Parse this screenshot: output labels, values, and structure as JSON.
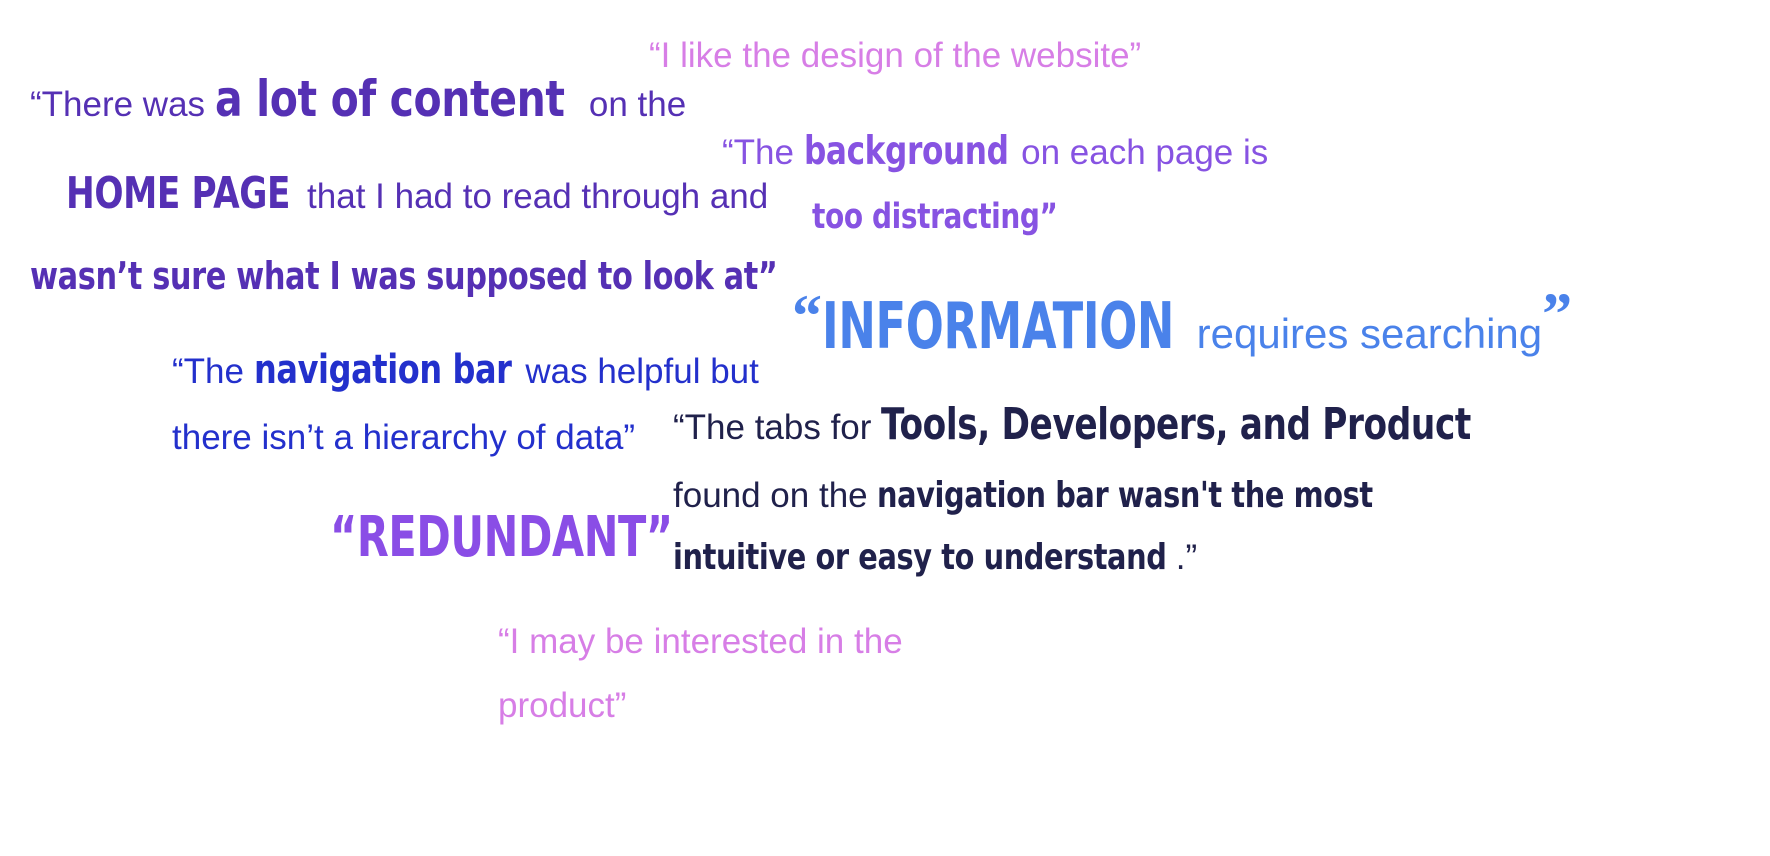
{
  "quotes": {
    "design": {
      "text": "“I like the design of the website”"
    },
    "content": {
      "l1_a": "“There was ",
      "l1_b": "a lot of content",
      "l1_c": " on the",
      "l2_a": "HOME PAGE",
      "l2_b": " that I had to read through and",
      "l3_a": "wasn’t sure what I was supposed to look at”"
    },
    "background": {
      "l1_a": "“The ",
      "l1_b": "background",
      "l1_c": " on each page is",
      "l2_a": "too distracting”"
    },
    "information": {
      "open": "“",
      "l1_a": "INFORMATION",
      "l1_b": " requires searching",
      "close": "”"
    },
    "navigation": {
      "l1_a": "“The ",
      "l1_b": "navigation bar",
      "l1_c": " was helpful but",
      "l2_a": "there isn’t a hierarchy of data”"
    },
    "tabs": {
      "l1_a": "“The tabs for ",
      "l1_b": "Tools, Developers, and Product",
      "l2_a": "found on the ",
      "l2_b": "navigation bar wasn't the most",
      "l3_a": "intuitive or easy to understand",
      "l3_b": ".”"
    },
    "redundant": {
      "text": "“REDUNDANT”"
    },
    "product": {
      "l1": "“I may be interested in the",
      "l2": "product”"
    }
  },
  "colors": {
    "pink": "#d77ee6",
    "deep_violet": "#5530b4",
    "violet": "#8753e2",
    "sky_blue": "#4a82ea",
    "royal_blue": "#2330cc",
    "navy": "#20214b",
    "purple": "#8a4de6"
  }
}
